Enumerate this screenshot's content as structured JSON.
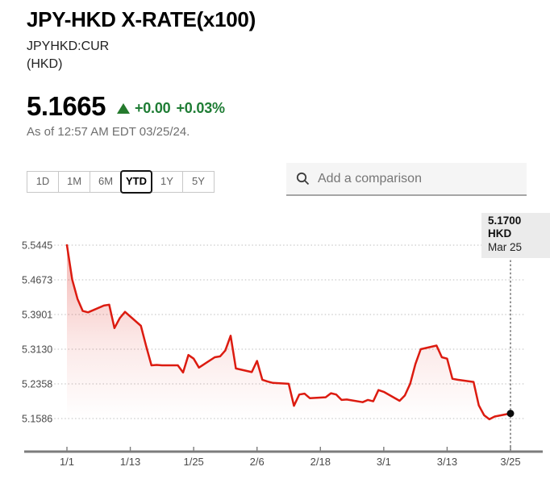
{
  "header": {
    "title": "JPY-HKD X-RATE(x100)",
    "symbol": "JPYHKD:CUR",
    "unit": "(HKD)",
    "price": "5.1665",
    "change_direction": "up",
    "change_value": "+0.00",
    "change_pct": "+0.03%",
    "as_of": "As of 12:57 AM EDT 03/25/24."
  },
  "controls": {
    "ranges": [
      {
        "label": "1D",
        "active": false
      },
      {
        "label": "1M",
        "active": false
      },
      {
        "label": "6M",
        "active": false
      },
      {
        "label": "YTD",
        "active": true
      },
      {
        "label": "1Y",
        "active": false
      },
      {
        "label": "5Y",
        "active": false
      }
    ],
    "search_placeholder": "Add a comparison"
  },
  "annotation": {
    "price_label": "5.1700 HKD",
    "date_label": "Mar 25"
  },
  "colors": {
    "line_red": "#dc1b10",
    "fill_red": "220,30,20",
    "green": "#1f7d35",
    "grid": "#cbcbcb",
    "axis": "#7c7c7c",
    "tick_text": "#4a4a4a",
    "marker": "#8a8a8a",
    "dot": "#0c0c0c"
  },
  "chart_data": {
    "type": "line",
    "title": "JPY-HKD X-RATE(x100) YTD",
    "xlabel": "",
    "ylabel": "HKD",
    "ylim": [
      5.12,
      5.56
    ],
    "grid": "dotted-horizontal",
    "legend_position": "none",
    "y_ticks": [
      5.5445,
      5.4673,
      5.3901,
      5.313,
      5.2358,
      5.1586
    ],
    "x_ticks": [
      {
        "label": "1/1",
        "day": 0
      },
      {
        "label": "1/13",
        "day": 12
      },
      {
        "label": "1/25",
        "day": 24
      },
      {
        "label": "2/6",
        "day": 36
      },
      {
        "label": "2/18",
        "day": 48
      },
      {
        "label": "3/1",
        "day": 60
      },
      {
        "label": "3/13",
        "day": 72
      },
      {
        "label": "3/25",
        "day": 84
      }
    ],
    "last_point": {
      "date": "Mar 25",
      "value": 5.17,
      "label": "5.1700 HKD"
    },
    "series": [
      {
        "name": "JPYHKD:CUR",
        "color": "#dc1b10",
        "points": [
          {
            "d": "1/1",
            "t": 0,
            "v": 5.5445
          },
          {
            "d": "1/2",
            "t": 1,
            "v": 5.468
          },
          {
            "d": "1/3",
            "t": 2,
            "v": 5.425
          },
          {
            "d": "1/4",
            "t": 3,
            "v": 5.398
          },
          {
            "d": "1/5",
            "t": 4,
            "v": 5.395
          },
          {
            "d": "1/8",
            "t": 7,
            "v": 5.41
          },
          {
            "d": "1/9",
            "t": 8,
            "v": 5.412
          },
          {
            "d": "1/10",
            "t": 9,
            "v": 5.36
          },
          {
            "d": "1/11",
            "t": 10,
            "v": 5.382
          },
          {
            "d": "1/12",
            "t": 11,
            "v": 5.396
          },
          {
            "d": "1/15",
            "t": 14,
            "v": 5.365
          },
          {
            "d": "1/16",
            "t": 15,
            "v": 5.32
          },
          {
            "d": "1/17",
            "t": 16,
            "v": 5.277
          },
          {
            "d": "1/18",
            "t": 17,
            "v": 5.278
          },
          {
            "d": "1/19",
            "t": 18,
            "v": 5.277
          },
          {
            "d": "1/22",
            "t": 21,
            "v": 5.277
          },
          {
            "d": "1/23",
            "t": 22,
            "v": 5.261
          },
          {
            "d": "1/24",
            "t": 23,
            "v": 5.3
          },
          {
            "d": "1/25",
            "t": 24,
            "v": 5.292
          },
          {
            "d": "1/26",
            "t": 25,
            "v": 5.272
          },
          {
            "d": "1/29",
            "t": 28,
            "v": 5.295
          },
          {
            "d": "1/30",
            "t": 29,
            "v": 5.297
          },
          {
            "d": "1/31",
            "t": 30,
            "v": 5.31
          },
          {
            "d": "2/1",
            "t": 31,
            "v": 5.343
          },
          {
            "d": "2/2",
            "t": 32,
            "v": 5.27
          },
          {
            "d": "2/5",
            "t": 35,
            "v": 5.262
          },
          {
            "d": "2/6",
            "t": 36,
            "v": 5.287
          },
          {
            "d": "2/7",
            "t": 37,
            "v": 5.245
          },
          {
            "d": "2/8",
            "t": 38,
            "v": 5.241
          },
          {
            "d": "2/9",
            "t": 39,
            "v": 5.238
          },
          {
            "d": "2/12",
            "t": 42,
            "v": 5.236
          },
          {
            "d": "2/13",
            "t": 43,
            "v": 5.187
          },
          {
            "d": "2/14",
            "t": 44,
            "v": 5.212
          },
          {
            "d": "2/15",
            "t": 45,
            "v": 5.214
          },
          {
            "d": "2/16",
            "t": 46,
            "v": 5.204
          },
          {
            "d": "2/19",
            "t": 49,
            "v": 5.206
          },
          {
            "d": "2/20",
            "t": 50,
            "v": 5.215
          },
          {
            "d": "2/21",
            "t": 51,
            "v": 5.212
          },
          {
            "d": "2/22",
            "t": 52,
            "v": 5.2
          },
          {
            "d": "2/23",
            "t": 53,
            "v": 5.201
          },
          {
            "d": "2/26",
            "t": 56,
            "v": 5.195
          },
          {
            "d": "2/27",
            "t": 57,
            "v": 5.2
          },
          {
            "d": "2/28",
            "t": 58,
            "v": 5.197
          },
          {
            "d": "2/29",
            "t": 59,
            "v": 5.222
          },
          {
            "d": "3/1",
            "t": 60,
            "v": 5.218
          },
          {
            "d": "3/4",
            "t": 63,
            "v": 5.198
          },
          {
            "d": "3/5",
            "t": 64,
            "v": 5.21
          },
          {
            "d": "3/6",
            "t": 65,
            "v": 5.236
          },
          {
            "d": "3/7",
            "t": 66,
            "v": 5.28
          },
          {
            "d": "3/8",
            "t": 67,
            "v": 5.313
          },
          {
            "d": "3/11",
            "t": 70,
            "v": 5.321
          },
          {
            "d": "3/12",
            "t": 71,
            "v": 5.295
          },
          {
            "d": "3/13",
            "t": 72,
            "v": 5.292
          },
          {
            "d": "3/14",
            "t": 73,
            "v": 5.247
          },
          {
            "d": "3/15",
            "t": 74,
            "v": 5.245
          },
          {
            "d": "3/18",
            "t": 77,
            "v": 5.24
          },
          {
            "d": "3/19",
            "t": 78,
            "v": 5.188
          },
          {
            "d": "3/20",
            "t": 79,
            "v": 5.166
          },
          {
            "d": "3/21",
            "t": 80,
            "v": 5.157
          },
          {
            "d": "3/22",
            "t": 81,
            "v": 5.163
          },
          {
            "d": "3/25",
            "t": 84,
            "v": 5.17
          }
        ]
      }
    ]
  }
}
